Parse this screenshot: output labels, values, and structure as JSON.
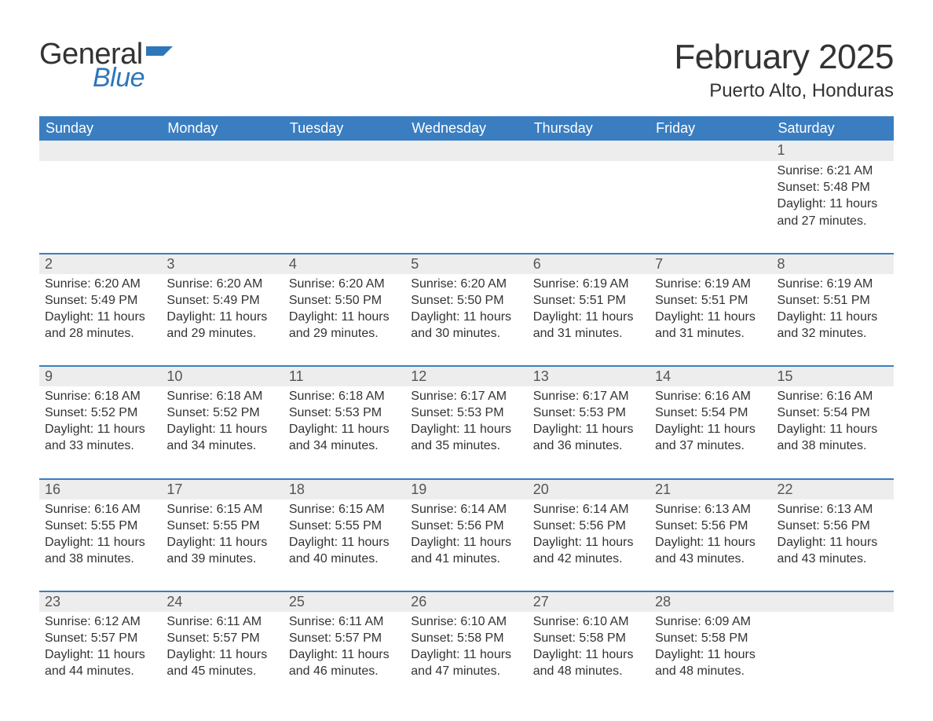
{
  "brand": {
    "part1": "General",
    "part2": "Blue",
    "flag_color": "#2d76bb"
  },
  "title": "February 2025",
  "location": "Puerto Alto, Honduras",
  "header_bg": "#3a7ec1",
  "header_text": "#ffffff",
  "daynum_bg": "#ededed",
  "row_border": "#3a7ec1",
  "text_color": "#333333",
  "page_bg": "#ffffff",
  "weekdays": [
    "Sunday",
    "Monday",
    "Tuesday",
    "Wednesday",
    "Thursday",
    "Friday",
    "Saturday"
  ],
  "weeks": [
    [
      null,
      null,
      null,
      null,
      null,
      null,
      {
        "n": "1",
        "sr": "Sunrise: 6:21 AM",
        "ss": "Sunset: 5:48 PM",
        "dl": "Daylight: 11 hours and 27 minutes."
      }
    ],
    [
      {
        "n": "2",
        "sr": "Sunrise: 6:20 AM",
        "ss": "Sunset: 5:49 PM",
        "dl": "Daylight: 11 hours and 28 minutes."
      },
      {
        "n": "3",
        "sr": "Sunrise: 6:20 AM",
        "ss": "Sunset: 5:49 PM",
        "dl": "Daylight: 11 hours and 29 minutes."
      },
      {
        "n": "4",
        "sr": "Sunrise: 6:20 AM",
        "ss": "Sunset: 5:50 PM",
        "dl": "Daylight: 11 hours and 29 minutes."
      },
      {
        "n": "5",
        "sr": "Sunrise: 6:20 AM",
        "ss": "Sunset: 5:50 PM",
        "dl": "Daylight: 11 hours and 30 minutes."
      },
      {
        "n": "6",
        "sr": "Sunrise: 6:19 AM",
        "ss": "Sunset: 5:51 PM",
        "dl": "Daylight: 11 hours and 31 minutes."
      },
      {
        "n": "7",
        "sr": "Sunrise: 6:19 AM",
        "ss": "Sunset: 5:51 PM",
        "dl": "Daylight: 11 hours and 31 minutes."
      },
      {
        "n": "8",
        "sr": "Sunrise: 6:19 AM",
        "ss": "Sunset: 5:51 PM",
        "dl": "Daylight: 11 hours and 32 minutes."
      }
    ],
    [
      {
        "n": "9",
        "sr": "Sunrise: 6:18 AM",
        "ss": "Sunset: 5:52 PM",
        "dl": "Daylight: 11 hours and 33 minutes."
      },
      {
        "n": "10",
        "sr": "Sunrise: 6:18 AM",
        "ss": "Sunset: 5:52 PM",
        "dl": "Daylight: 11 hours and 34 minutes."
      },
      {
        "n": "11",
        "sr": "Sunrise: 6:18 AM",
        "ss": "Sunset: 5:53 PM",
        "dl": "Daylight: 11 hours and 34 minutes."
      },
      {
        "n": "12",
        "sr": "Sunrise: 6:17 AM",
        "ss": "Sunset: 5:53 PM",
        "dl": "Daylight: 11 hours and 35 minutes."
      },
      {
        "n": "13",
        "sr": "Sunrise: 6:17 AM",
        "ss": "Sunset: 5:53 PM",
        "dl": "Daylight: 11 hours and 36 minutes."
      },
      {
        "n": "14",
        "sr": "Sunrise: 6:16 AM",
        "ss": "Sunset: 5:54 PM",
        "dl": "Daylight: 11 hours and 37 minutes."
      },
      {
        "n": "15",
        "sr": "Sunrise: 6:16 AM",
        "ss": "Sunset: 5:54 PM",
        "dl": "Daylight: 11 hours and 38 minutes."
      }
    ],
    [
      {
        "n": "16",
        "sr": "Sunrise: 6:16 AM",
        "ss": "Sunset: 5:55 PM",
        "dl": "Daylight: 11 hours and 38 minutes."
      },
      {
        "n": "17",
        "sr": "Sunrise: 6:15 AM",
        "ss": "Sunset: 5:55 PM",
        "dl": "Daylight: 11 hours and 39 minutes."
      },
      {
        "n": "18",
        "sr": "Sunrise: 6:15 AM",
        "ss": "Sunset: 5:55 PM",
        "dl": "Daylight: 11 hours and 40 minutes."
      },
      {
        "n": "19",
        "sr": "Sunrise: 6:14 AM",
        "ss": "Sunset: 5:56 PM",
        "dl": "Daylight: 11 hours and 41 minutes."
      },
      {
        "n": "20",
        "sr": "Sunrise: 6:14 AM",
        "ss": "Sunset: 5:56 PM",
        "dl": "Daylight: 11 hours and 42 minutes."
      },
      {
        "n": "21",
        "sr": "Sunrise: 6:13 AM",
        "ss": "Sunset: 5:56 PM",
        "dl": "Daylight: 11 hours and 43 minutes."
      },
      {
        "n": "22",
        "sr": "Sunrise: 6:13 AM",
        "ss": "Sunset: 5:56 PM",
        "dl": "Daylight: 11 hours and 43 minutes."
      }
    ],
    [
      {
        "n": "23",
        "sr": "Sunrise: 6:12 AM",
        "ss": "Sunset: 5:57 PM",
        "dl": "Daylight: 11 hours and 44 minutes."
      },
      {
        "n": "24",
        "sr": "Sunrise: 6:11 AM",
        "ss": "Sunset: 5:57 PM",
        "dl": "Daylight: 11 hours and 45 minutes."
      },
      {
        "n": "25",
        "sr": "Sunrise: 6:11 AM",
        "ss": "Sunset: 5:57 PM",
        "dl": "Daylight: 11 hours and 46 minutes."
      },
      {
        "n": "26",
        "sr": "Sunrise: 6:10 AM",
        "ss": "Sunset: 5:58 PM",
        "dl": "Daylight: 11 hours and 47 minutes."
      },
      {
        "n": "27",
        "sr": "Sunrise: 6:10 AM",
        "ss": "Sunset: 5:58 PM",
        "dl": "Daylight: 11 hours and 48 minutes."
      },
      {
        "n": "28",
        "sr": "Sunrise: 6:09 AM",
        "ss": "Sunset: 5:58 PM",
        "dl": "Daylight: 11 hours and 48 minutes."
      },
      null
    ]
  ]
}
